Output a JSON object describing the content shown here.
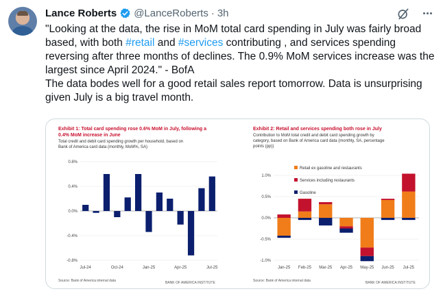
{
  "tweet": {
    "author_name": "Lance Roberts",
    "handle": "@LanceRoberts",
    "separator": "·",
    "time": "3h",
    "text_1": "\"Looking at the data, the rise in MoM total card spending in July was fairly broad based, with both ",
    "hashtag_retail": "#retail",
    "text_2": " and ",
    "hashtag_services": "#services",
    "text_3": " contributing , and services spending reversing after three months of declines. The 0.9% MoM services increase was the largest since April 2024.\" - BofA",
    "text_4": "The data bodes well for a good retail sales report tomorrow. Data is unsurprising given July is a big travel month."
  },
  "colors": {
    "accent_blue": "#1d9bf0",
    "navy": "#0b1f6e",
    "orange": "#f07d1a",
    "crimson": "#c3122d",
    "title_red": "#c8102e"
  },
  "chart_data": [
    {
      "type": "bar",
      "exhibit": "Exhibit 1: Total card spending rose 0.6% MoM in July, following a 0.4% MoM increase in June",
      "title_line1": "Exhibit 1: Total card spending rose 0.6% MoM in July, following a",
      "title_line2": "0.4% MoM increase in June",
      "subtitle_line1": "Total credit and debit card spending growth per household, based on",
      "subtitle_line2": "Bank of America card data (monthly, MoM%, SA)",
      "categories": [
        "Jul-24",
        "Aug-24",
        "Sep-24",
        "Oct-24",
        "Nov-24",
        "Dec-24",
        "Jan-25",
        "Feb-25",
        "Mar-25",
        "Apr-25",
        "May-25",
        "Jun-25",
        "Jul-25"
      ],
      "values": [
        0.1,
        -0.03,
        0.6,
        -0.1,
        0.22,
        0.6,
        -0.34,
        0.3,
        0.2,
        -0.22,
        -0.72,
        0.37,
        0.56
      ],
      "x_tick_labels": [
        "Jul-24",
        "Oct-24",
        "Jan-25",
        "Apr-25",
        "Jul-25"
      ],
      "y_ticks": [
        0.8,
        0.4,
        0.0,
        -0.4,
        -0.8
      ],
      "y_tick_labels": [
        "0.8%",
        "0.4%",
        "0.0%",
        "-0.4%",
        "-0.8%"
      ],
      "ylim": [
        -0.8,
        0.8
      ],
      "source": "Source: Bank of America internal data",
      "brand": "BANK OF AMERICA INSTITUTE"
    },
    {
      "type": "stacked-bar",
      "title": "Exhibit 2: Retail and services spending both rose in July",
      "subtitle_line1": "Contribution to MoM total credit and debit card spending growth by",
      "subtitle_line2": "category, based on Bank of America card data (monthly, SA, percentage",
      "subtitle_line3": "points (pp))",
      "categories": [
        "Jan-25",
        "Feb-25",
        "Mar-25",
        "Apr-25",
        "May-25",
        "Jun-25",
        "Jul-25"
      ],
      "series": [
        {
          "name": "Retail ex gasoline and restaurants",
          "values": [
            -0.42,
            0.15,
            0.32,
            -0.2,
            -0.7,
            0.42,
            0.62
          ]
        },
        {
          "name": "Services including restaurants",
          "values": [
            0.08,
            0.3,
            0.05,
            -0.05,
            -0.2,
            0.03,
            0.42
          ]
        },
        {
          "name": "Gasoline",
          "values": [
            -0.05,
            -0.05,
            -0.18,
            -0.1,
            -0.12,
            -0.05,
            -0.05
          ]
        }
      ],
      "y_ticks": [
        1.0,
        0.5,
        0.0,
        -0.5,
        -1.0
      ],
      "y_tick_labels": [
        "1.0%",
        "0.5%",
        "0.0%",
        "-0.5%",
        "-1.0%"
      ],
      "ylim": [
        -1.0,
        1.0
      ],
      "source": "Source: Bank of America internal data",
      "brand": "BANK OF AMERICA INSTITUTE"
    }
  ]
}
